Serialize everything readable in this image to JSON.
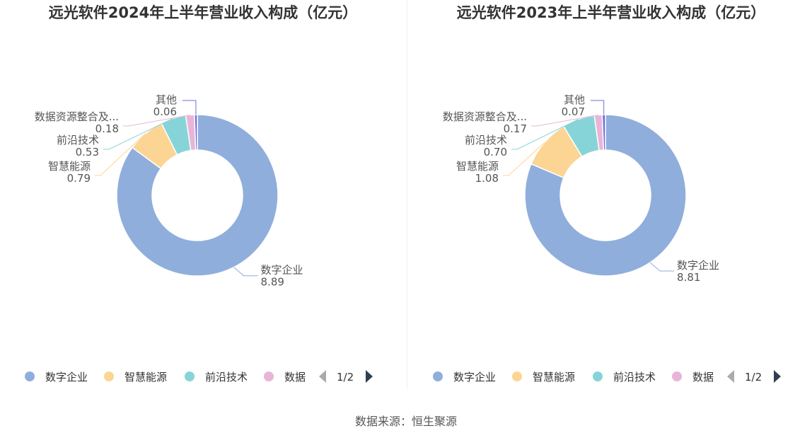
{
  "footer": {
    "source": "数据来源：恒生聚源"
  },
  "chart_data": [
    {
      "type": "pie",
      "title": "远光软件2024年上半年营业收入构成（亿元）",
      "slices": [
        {
          "name": "数字企业",
          "label": "数字企业",
          "value": 8.89,
          "display": "8.89",
          "color": "#8faedb"
        },
        {
          "name": "智慧能源",
          "label": "智慧能源",
          "value": 0.79,
          "display": "0.79",
          "color": "#fcd594"
        },
        {
          "name": "前沿技术",
          "label": "前沿技术",
          "value": 0.53,
          "display": "0.53",
          "color": "#87d4d8"
        },
        {
          "name": "数据资源整合及服务",
          "label": "数据资源整合及...",
          "value": 0.18,
          "display": "0.18",
          "color": "#e8b5d8"
        },
        {
          "name": "其他",
          "label": "其他",
          "value": 0.06,
          "display": "0.06",
          "color": "#6e6ee0"
        }
      ],
      "legend": {
        "items": [
          "数字企业",
          "智慧能源",
          "前沿技术",
          "数据"
        ],
        "page": "1/2",
        "position": "bottom"
      }
    },
    {
      "type": "pie",
      "title": "远光软件2023年上半年营业收入构成（亿元）",
      "slices": [
        {
          "name": "数字企业",
          "label": "数字企业",
          "value": 8.81,
          "display": "8.81",
          "color": "#8faedb"
        },
        {
          "name": "智慧能源",
          "label": "智慧能源",
          "value": 1.08,
          "display": "1.08",
          "color": "#fcd594"
        },
        {
          "name": "前沿技术",
          "label": "前沿技术",
          "value": 0.7,
          "display": "0.70",
          "color": "#87d4d8"
        },
        {
          "name": "数据资源整合及服务",
          "label": "数据资源整合及...",
          "value": 0.17,
          "display": "0.17",
          "color": "#e8b5d8"
        },
        {
          "name": "其他",
          "label": "其他",
          "value": 0.07,
          "display": "0.07",
          "color": "#6e6ee0"
        }
      ],
      "legend": {
        "items": [
          "数字企业",
          "智慧能源",
          "前沿技术",
          "数据"
        ],
        "page": "1/2",
        "position": "bottom"
      }
    }
  ]
}
